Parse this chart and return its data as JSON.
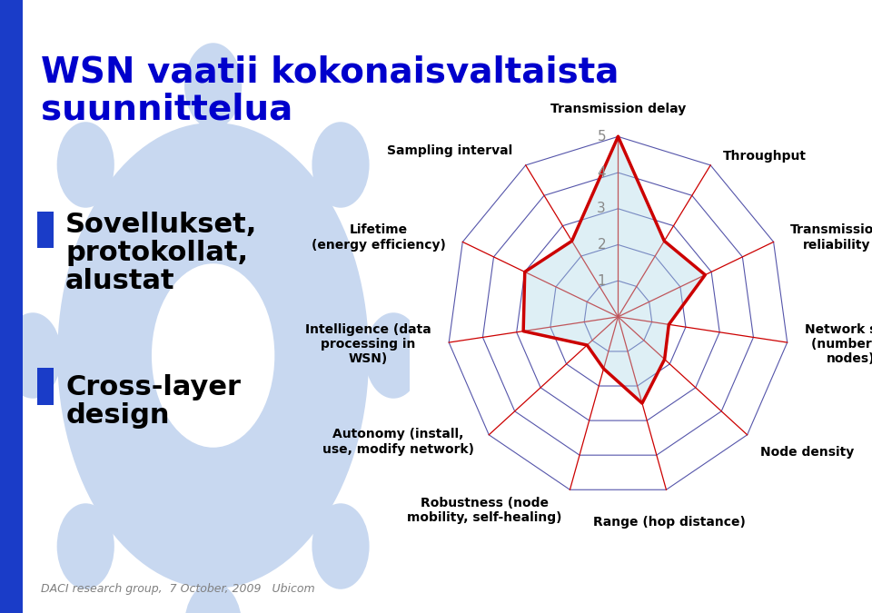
{
  "categories": [
    "Transmission delay",
    "Throughput",
    "Transmission\nreliability",
    "Network size\n(number of\nnodes)",
    "Node density",
    "Range (hop distance)",
    "Robustness (node\nmobility, self-healing)",
    "Autonomy (install,\nuse, modify network)",
    "Intelligence (data\nprocessing in\nWSN)",
    "Lifetime\n(energy efficiency)",
    "Sampling interval"
  ],
  "values": [
    5.0,
    2.5,
    2.8,
    1.5,
    1.8,
    2.5,
    1.5,
    1.2,
    2.8,
    3.0,
    2.5
  ],
  "n_levels": 5,
  "max_val": 5,
  "radar_grid_color": "#5555aa",
  "radar_spoke_color": "#cc0000",
  "fill_color": "#add8e6",
  "fill_alpha": 0.4,
  "line_color": "#cc0000",
  "line_width": 2.5,
  "label_fontsize": 10,
  "tick_fontsize": 11,
  "tick_color": "#888888",
  "background_color": "#ffffff",
  "title": "WSN vaatii kokonaisvaltaista\nsuunnittelua",
  "title_color": "#0000cc",
  "title_fontsize": 28,
  "bullet_items": [
    "Sovellukset,\nprotokollat,\nalustat",
    "Cross-layer\ndesign"
  ],
  "bullet_color": "#1a3cc8",
  "bullet_fontsize": 22,
  "footer_text": "DACI research group,  7 October, 2009   Ubicom",
  "footer_fontsize": 9,
  "gear_color": "#c8d8f0",
  "sidebar_color": "#1a3cc8"
}
